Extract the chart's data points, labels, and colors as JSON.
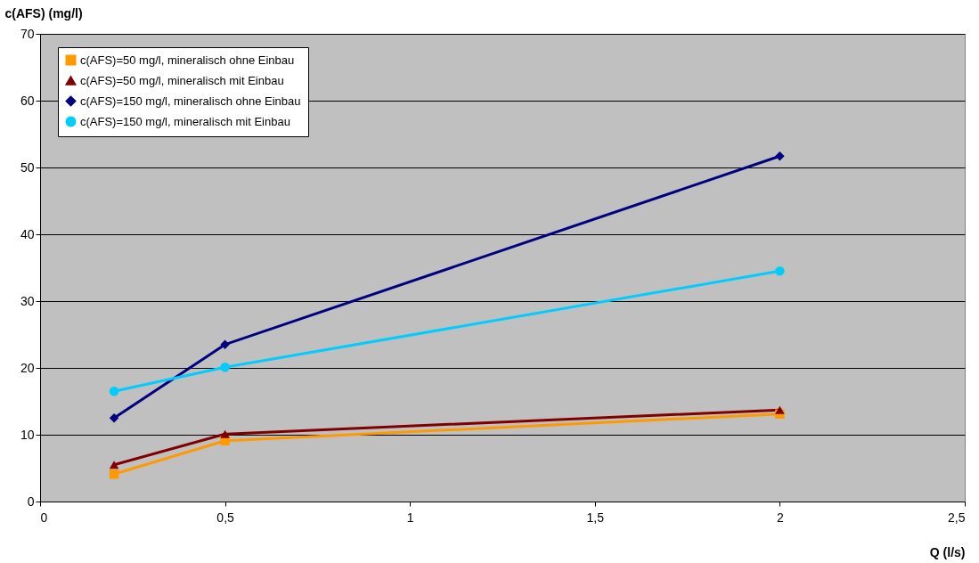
{
  "chart_data": {
    "type": "line",
    "xlabel": "Q (l/s)",
    "ylabel": "c(AFS) (mg/l)",
    "x": [
      0.2,
      0.5,
      2
    ],
    "xlim": [
      0,
      2.5
    ],
    "xticks": [
      0,
      {
        "value": 0.5,
        "label": "0,5"
      },
      1,
      {
        "value": 1.5,
        "label": "1,5"
      },
      2,
      {
        "value": 2.5,
        "label": "2,5"
      }
    ],
    "ylim": [
      0,
      70
    ],
    "yticks": [
      0,
      10,
      20,
      30,
      40,
      50,
      60,
      70
    ],
    "grid": "y",
    "legend": "top left",
    "series": [
      {
        "name": "c(AFS)=50 mg/l, mineralisch ohne Einbau",
        "color": "#ff9900",
        "marker": "square",
        "values": [
          4.1,
          9.1,
          13.1
        ]
      },
      {
        "name": "c(AFS)=50 mg/l, mineralisch mit Einbau",
        "color": "#800000",
        "marker": "triangle",
        "values": [
          5.5,
          10.1,
          13.7
        ]
      },
      {
        "name": "c(AFS)=150 mg/l, mineralisch ohne Einbau",
        "color": "#000080",
        "marker": "diamond",
        "values": [
          12.5,
          23.5,
          51.7
        ]
      },
      {
        "name": "c(AFS)=150 mg/l, mineralisch mit Einbau",
        "color": "#00ccff",
        "marker": "circle",
        "values": [
          16.5,
          20.1,
          34.5
        ]
      }
    ]
  }
}
